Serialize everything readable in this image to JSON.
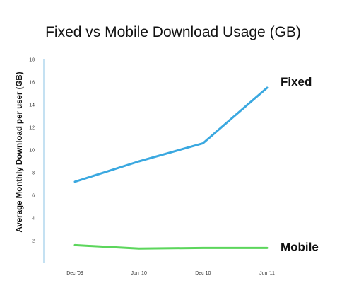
{
  "chart_data": {
    "type": "line",
    "title": "Fixed vs Mobile Download Usage (GB)",
    "xlabel": "",
    "ylabel": "Average Monthly Download per user (GB)",
    "categories": [
      "Dec '09",
      "Jun '10",
      "Dec 10",
      "Jun '11"
    ],
    "ylim": [
      0,
      18
    ],
    "yticks": [
      2,
      4,
      6,
      8,
      10,
      12,
      14,
      16,
      18
    ],
    "grid": false,
    "series": [
      {
        "name": "Fixed",
        "color": "#3aa8e0",
        "values": [
          7.2,
          9.0,
          10.6,
          15.5
        ]
      },
      {
        "name": "Mobile",
        "color": "#5cd65c",
        "values": [
          1.6,
          1.3,
          1.35,
          1.35
        ]
      }
    ]
  }
}
